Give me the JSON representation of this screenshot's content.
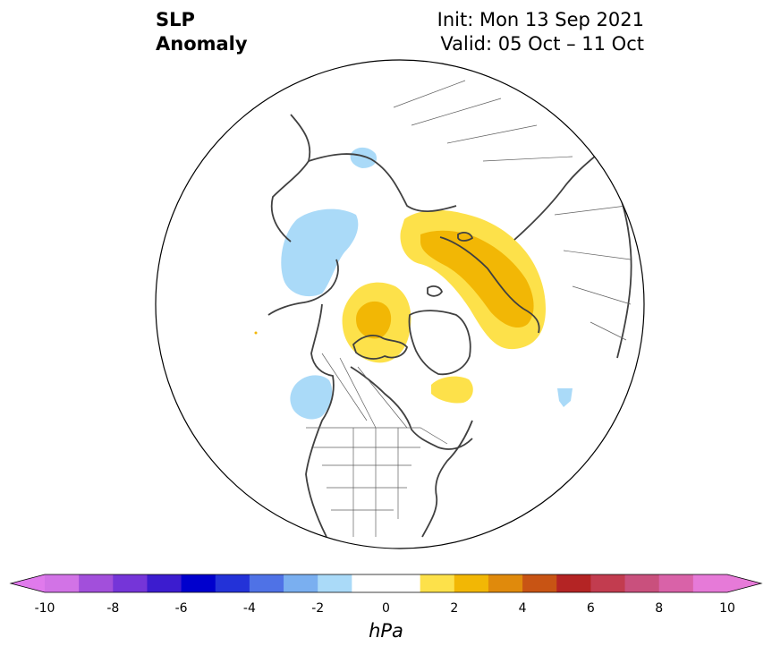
{
  "title": {
    "left_line1": "SLP",
    "left_line2": "Anomaly",
    "right_line1": "Init: Mon 13 Sep 2021",
    "right_line2": "Valid: 05 Oct – 11 Oct"
  },
  "map": {
    "projection": "north-polar-stereographic",
    "region": "Northern Hemisphere (North America, Arctic, Eurasia)",
    "anomaly_areas": [
      {
        "name": "Scandinavia / Barents high",
        "level": "+1 to +3 hPa"
      },
      {
        "name": "Greenland / Baffin high",
        "level": "+1 to +3 hPa"
      },
      {
        "name": "Hudson Bay positive",
        "level": "+1 to +2 hPa"
      },
      {
        "name": "Alaska / Bering low",
        "level": "-1 to -2 hPa"
      },
      {
        "name": "East Pacific low",
        "level": "-1 to -2 hPa"
      },
      {
        "name": "Central Siberia low",
        "level": "-1 to -2 hPa"
      },
      {
        "name": "Eastern Atlantic low",
        "level": "-1 to -2 hPa"
      }
    ]
  },
  "colorbar": {
    "unit": "hPa",
    "tick_labels": [
      "-10",
      "-8",
      "-6",
      "-4",
      "-2",
      "0",
      "2",
      "4",
      "6",
      "8",
      "10"
    ],
    "bounds": [
      -10,
      -9,
      -8,
      -7,
      -6,
      -5,
      -4,
      -3,
      -2,
      -1,
      1,
      2,
      3,
      4,
      5,
      6,
      7,
      8,
      9,
      10
    ],
    "colors": [
      "#d273e6",
      "#a24fdb",
      "#7535d8",
      "#3c1ccf",
      "#0000cd",
      "#2332d8",
      "#4f72e6",
      "#7aaff0",
      "#aadaf8",
      "#ffffff",
      "#fde14a",
      "#f2b705",
      "#e08a0c",
      "#c85414",
      "#b42424",
      "#c23c4f",
      "#c9507d",
      "#d962a8",
      "#e67ad8"
    ],
    "extend_min_color": "#e07aec",
    "extend_max_color": "#e67ad8"
  }
}
